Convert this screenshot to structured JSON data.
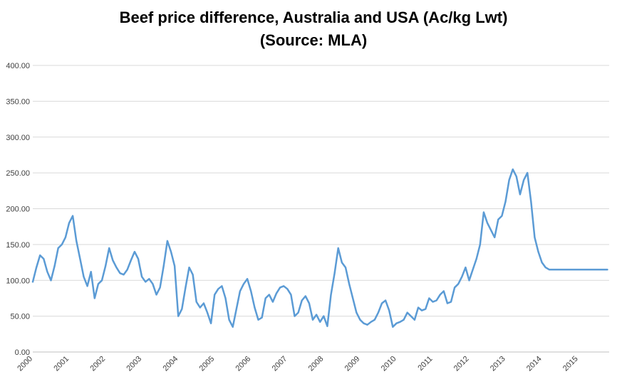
{
  "chart_data": {
    "type": "line",
    "title": "Beef price difference, Australia and USA (Ac/kg Lwt)",
    "subtitle": "(Source: MLA)",
    "xlabel": "",
    "ylabel": "",
    "ylim": [
      0,
      400
    ],
    "xlim": [
      2000,
      2015.85
    ],
    "y_ticks": [
      "0.00",
      "50.00",
      "100.00",
      "150.00",
      "200.00",
      "250.00",
      "300.00",
      "350.00",
      "400.00"
    ],
    "x_ticks": [
      "2000",
      "2001",
      "2002",
      "2003",
      "2004",
      "2005",
      "2006",
      "2007",
      "2008",
      "2009",
      "2010",
      "2011",
      "2012",
      "2013",
      "2014",
      "2015"
    ],
    "grid": "horizontal",
    "color": "#5b9bd5",
    "series": [
      {
        "x": [
          2000.0,
          2000.1,
          2000.2,
          2000.3,
          2000.4,
          2000.5,
          2000.6,
          2000.7,
          2000.8,
          2000.9,
          2001.0,
          2001.1,
          2001.2,
          2001.3,
          2001.4,
          2001.5,
          2001.6,
          2001.7,
          2001.8,
          2001.9,
          2002.0,
          2002.1,
          2002.2,
          2002.3,
          2002.4,
          2002.5,
          2002.6,
          2002.7,
          2002.8,
          2002.9,
          2003.0,
          2003.1,
          2003.2,
          2003.3,
          2003.4,
          2003.5,
          2003.6,
          2003.7,
          2003.8,
          2003.9,
          2004.0,
          2004.1,
          2004.2,
          2004.3,
          2004.4,
          2004.5,
          2004.6,
          2004.7,
          2004.8,
          2004.9,
          2005.0,
          2005.1,
          2005.2,
          2005.3,
          2005.4,
          2005.5,
          2005.6,
          2005.7,
          2005.8,
          2005.9,
          2006.0,
          2006.1,
          2006.2,
          2006.3,
          2006.4,
          2006.5,
          2006.6,
          2006.7,
          2006.8,
          2006.9,
          2007.0,
          2007.1,
          2007.2,
          2007.3,
          2007.4,
          2007.5,
          2007.6,
          2007.7,
          2007.8,
          2007.9,
          2008.0,
          2008.1,
          2008.2,
          2008.3,
          2008.4,
          2008.5,
          2008.6,
          2008.7,
          2008.8,
          2008.9,
          2009.0,
          2009.1,
          2009.2,
          2009.3,
          2009.4,
          2009.5,
          2009.6,
          2009.7,
          2009.8,
          2009.9,
          2010.0,
          2010.1,
          2010.2,
          2010.3,
          2010.4,
          2010.5,
          2010.6,
          2010.7,
          2010.8,
          2010.9,
          2011.0,
          2011.1,
          2011.2,
          2011.3,
          2011.4,
          2011.5,
          2011.6,
          2011.7,
          2011.8,
          2011.9,
          2012.0,
          2012.1,
          2012.2,
          2012.3,
          2012.4,
          2012.5,
          2012.6,
          2012.7,
          2012.8,
          2012.9,
          2013.0,
          2013.1,
          2013.2,
          2013.3,
          2013.4,
          2013.5,
          2013.6,
          2013.7,
          2013.8,
          2013.9,
          2014.0,
          2014.1,
          2014.2,
          2014.3,
          2014.4,
          2014.5,
          2014.6,
          2014.7,
          2014.8,
          2014.9,
          2015.0,
          2015.1,
          2015.2,
          2015.3,
          2015.4,
          2015.5,
          2015.6,
          2015.7,
          2015.8
        ],
        "values": [
          98,
          118,
          135,
          130,
          112,
          100,
          120,
          145,
          150,
          160,
          180,
          190,
          155,
          130,
          105,
          92,
          112,
          75,
          95,
          100,
          120,
          145,
          128,
          118,
          110,
          108,
          115,
          128,
          140,
          130,
          105,
          98,
          102,
          95,
          80,
          90,
          120,
          155,
          140,
          120,
          50,
          60,
          90,
          118,
          108,
          70,
          62,
          68,
          55,
          40,
          80,
          88,
          92,
          75,
          45,
          35,
          60,
          85,
          95,
          102,
          85,
          62,
          45,
          48,
          75,
          80,
          70,
          82,
          90,
          92,
          88,
          80,
          50,
          55,
          72,
          78,
          68,
          45,
          52,
          42,
          50,
          36,
          80,
          110,
          145,
          125,
          118,
          95,
          75,
          55,
          45,
          40,
          38,
          42,
          45,
          55,
          68,
          72,
          58,
          35,
          40,
          42,
          45,
          55,
          50,
          45,
          62,
          58,
          60,
          75,
          70,
          72,
          80,
          85,
          68,
          70,
          90,
          95,
          105,
          118,
          100,
          115,
          130,
          150,
          195,
          180,
          170,
          160,
          185,
          190,
          210,
          240,
          255,
          245,
          220,
          240,
          250,
          210,
          160,
          140,
          125,
          118,
          115,
          115,
          115,
          115,
          115,
          115,
          115,
          115,
          115,
          115,
          115,
          115,
          115,
          115,
          115,
          115,
          115
        ]
      }
    ]
  }
}
